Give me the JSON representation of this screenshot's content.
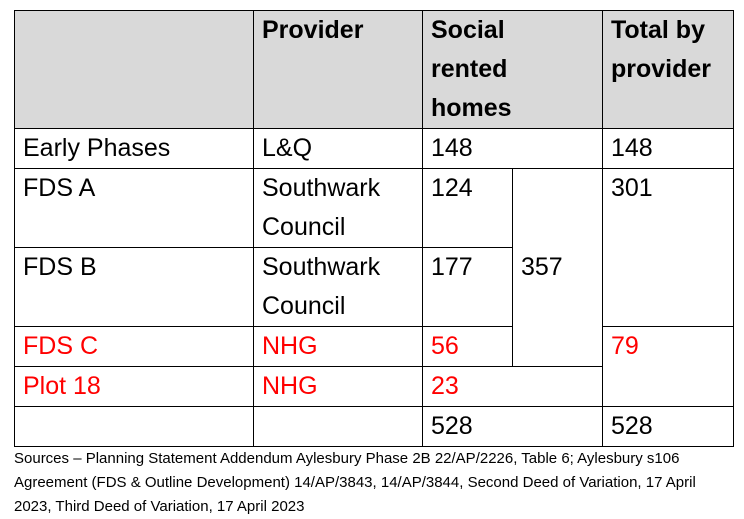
{
  "table": {
    "headers": {
      "col1": "",
      "provider": "Provider",
      "social_rented": [
        "Social",
        "rented",
        "homes"
      ],
      "total": [
        "Total by",
        "provider"
      ]
    },
    "rows": {
      "early_phases": {
        "site": "Early Phases",
        "provider": "L&Q",
        "homes": "148",
        "total": "148"
      },
      "fds_a": {
        "site": "FDS A",
        "provider": [
          "Southwark",
          "Council"
        ],
        "homes": "124",
        "total": "301"
      },
      "fds_b": {
        "site": "FDS B",
        "provider": [
          "Southwark",
          "Council"
        ],
        "homes": "177"
      },
      "fds_ab_combined": "357",
      "fds_c": {
        "site": "FDS C",
        "provider": "NHG",
        "homes": "56",
        "total": "79"
      },
      "plot_18": {
        "site": "Plot 18",
        "provider": "NHG",
        "homes": "23"
      },
      "totals": {
        "homes": "528",
        "total": "528"
      }
    },
    "highlight_color": "#ff0000",
    "header_background": "#d9d9d9"
  },
  "sources": "Sources – Planning Statement Addendum Aylesbury Phase 2B 22/AP/2226, Table 6; Aylesbury s106 Agreement (FDS & Outline Development) 14/AP/3843, 14/AP/3844, Second Deed of Variation, 17 April 2023, Third Deed of Variation, 17 April 2023"
}
